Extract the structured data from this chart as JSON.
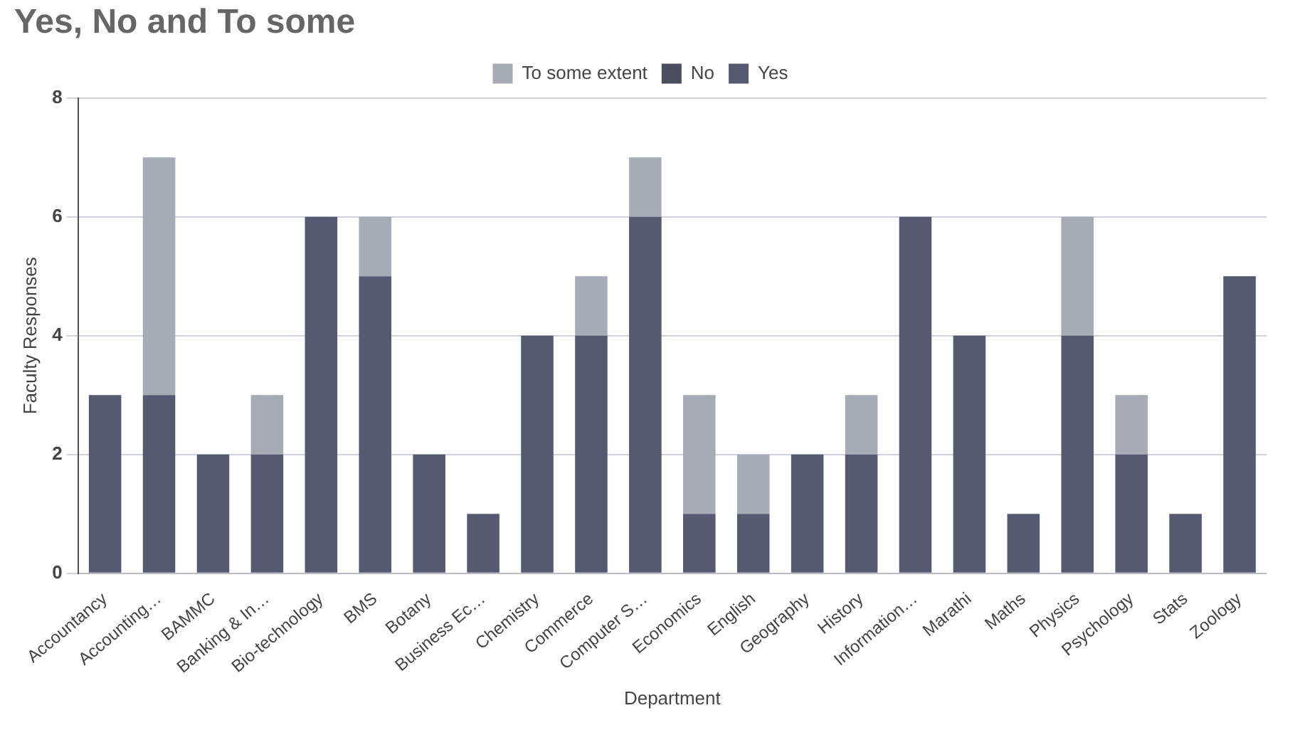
{
  "chart_data": {
    "type": "bar",
    "title": "Yes, No and To some",
    "xlabel": "Department",
    "ylabel": "Faculty Responses",
    "categories": [
      "Accountancy",
      "Accounting…",
      "BAMMC",
      "Banking & In…",
      "Bio-technology",
      "BMS",
      "Botany",
      "Business Ec…",
      "Chemistry",
      "Commerce",
      "Computer S…",
      "Economics",
      "English",
      "Geography",
      "History",
      "Information…",
      "Marathi",
      "Maths",
      "Physics",
      "Psychology",
      "Stats",
      "Zoology"
    ],
    "stacked": true,
    "series": [
      {
        "name": "Yes",
        "color": "#565a70",
        "values": [
          3,
          3,
          2,
          2,
          6,
          5,
          2,
          1,
          4,
          4,
          6,
          1,
          1,
          2,
          2,
          6,
          4,
          1,
          4,
          2,
          1,
          5
        ]
      },
      {
        "name": "No",
        "color": "#484e5c",
        "values": [
          0,
          0,
          0,
          0,
          0,
          0,
          0,
          0,
          0,
          0,
          0,
          0,
          0,
          0,
          0,
          0,
          0,
          0,
          0,
          0,
          0,
          0
        ]
      },
      {
        "name": "To some extent",
        "color": "#a7abb6",
        "values": [
          0,
          4,
          0,
          1,
          0,
          1,
          0,
          0,
          0,
          1,
          1,
          2,
          1,
          0,
          1,
          0,
          0,
          0,
          2,
          1,
          0,
          0
        ]
      }
    ],
    "ylim": [
      0,
      8
    ],
    "yticks": [
      0,
      2,
      4,
      6,
      8
    ],
    "grid": "y",
    "legend": "top"
  }
}
